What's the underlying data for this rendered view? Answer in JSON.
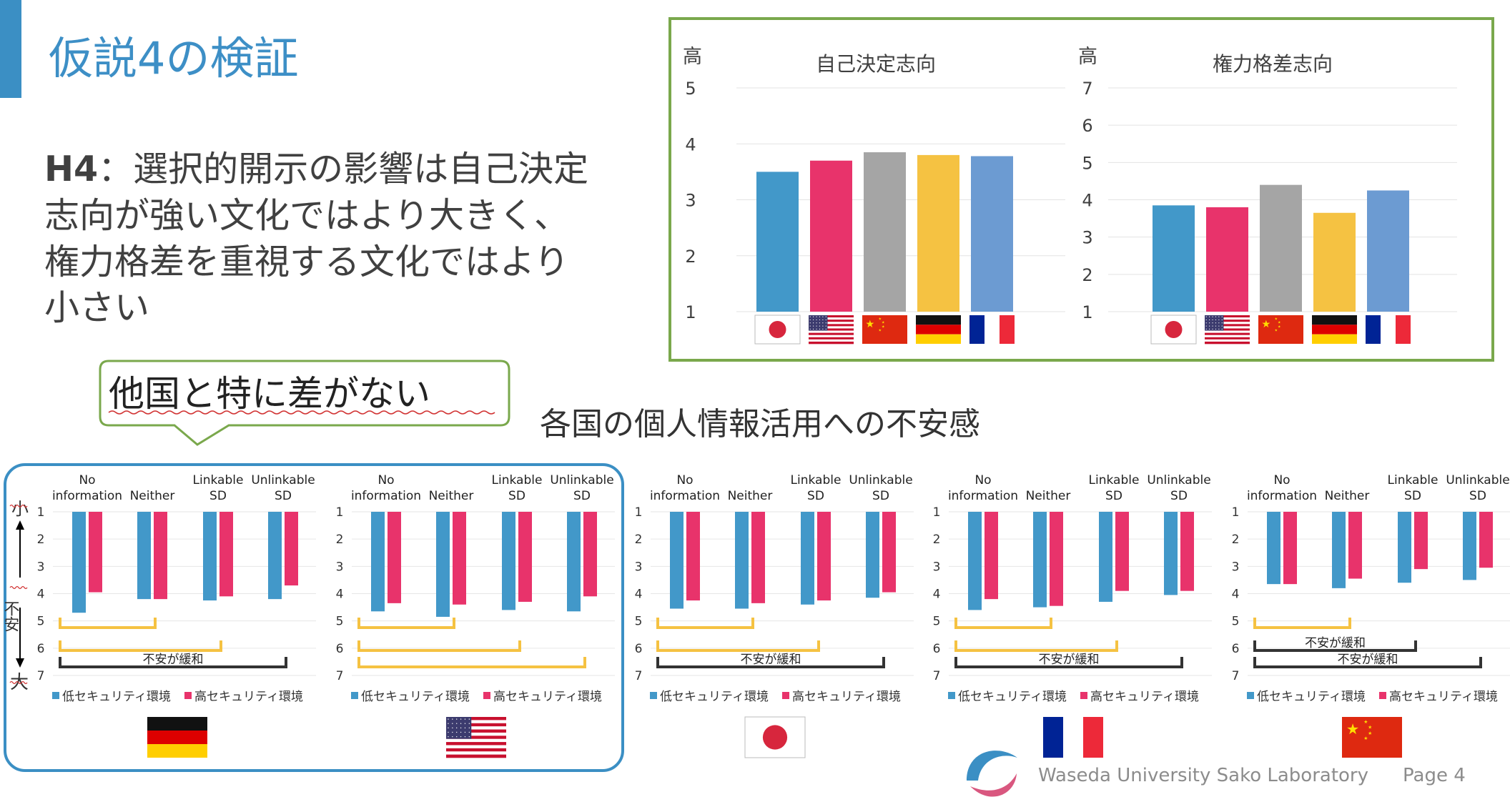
{
  "title": "仮説4の検証",
  "hypothesis": {
    "label": "H4",
    "lines": [
      "：選択的開示の影響は自己決定",
      "志向が強い文化ではより大きく、",
      "権力格差を重視する文化ではより",
      "小さい"
    ]
  },
  "callout": "他国と特に差がない",
  "section_title": "各国の個人情報活用への不安感",
  "footer": {
    "org": "Waseda University Sako Laboratory",
    "page": "Page 4"
  },
  "colors": {
    "accent": "#3b8fc4",
    "title": "#3d8fc6",
    "japan": "#4298c9",
    "usa": "#e8336b",
    "china": "#a5a5a5",
    "germany": "#f5c242",
    "france": "#6c9bd2",
    "low_security": "#4298c9",
    "high_security": "#e8336b",
    "bracket_yellow": "#f5c242",
    "bracket_dark": "#333333",
    "frame_green": "#7aa84c",
    "frame_blue": "#3b8fc4"
  },
  "culture_charts": [
    {
      "title": "自己決定志向",
      "axis_top_label": "高",
      "ylim": [
        1,
        5
      ],
      "ticks": [
        "1",
        "2",
        "3",
        "4",
        "5"
      ],
      "countries": [
        "japan",
        "usa",
        "china",
        "germany",
        "france"
      ],
      "flag_icons": [
        "japan-flag-icon",
        "usa-flag-icon",
        "china-flag-icon",
        "germany-flag-icon",
        "france-flag-icon"
      ],
      "values": [
        3.5,
        3.7,
        3.85,
        3.8,
        3.78
      ]
    },
    {
      "title": "権力格差志向",
      "axis_top_label": "高",
      "ylim": [
        1,
        7
      ],
      "ticks": [
        "1",
        "2",
        "3",
        "4",
        "5",
        "6",
        "7"
      ],
      "countries": [
        "japan",
        "usa",
        "china",
        "germany",
        "france"
      ],
      "flag_icons": [
        "japan-flag-icon",
        "usa-flag-icon",
        "china-flag-icon",
        "germany-flag-icon",
        "france-flag-icon"
      ],
      "values": [
        3.85,
        3.8,
        4.4,
        3.65,
        4.25
      ]
    }
  ],
  "anxiety_axis": {
    "top": "小",
    "middle": "不安",
    "bottom": "大"
  },
  "anxiety_charts": [
    {
      "country": "germany",
      "flag_icon": "germany-flag-icon",
      "categories": [
        "No information",
        "Neither",
        "Linkable SD",
        "Unlinkable SD"
      ],
      "ticks": [
        "1",
        "2",
        "3",
        "4",
        "5",
        "6",
        "7"
      ],
      "ylim": [
        1,
        7
      ],
      "series": [
        {
          "name": "低セキュリティ環境",
          "values": [
            4.7,
            4.2,
            4.25,
            4.2
          ]
        },
        {
          "name": "高セキュリティ環境",
          "values": [
            3.95,
            4.2,
            4.1,
            3.7
          ]
        }
      ],
      "brackets": [
        {
          "from": 0,
          "to": 1,
          "color": "yellow",
          "label": ""
        },
        {
          "from": 0,
          "to": 2,
          "color": "yellow",
          "label": ""
        },
        {
          "from": 0,
          "to": 3,
          "color": "dark",
          "label": "不安が緩和"
        }
      ]
    },
    {
      "country": "usa",
      "flag_icon": "usa-flag-icon",
      "categories": [
        "No information",
        "Neither",
        "Linkable SD",
        "Unlinkable SD"
      ],
      "ticks": [
        "1",
        "2",
        "3",
        "4",
        "5",
        "6",
        "7"
      ],
      "ylim": [
        1,
        7
      ],
      "series": [
        {
          "name": "低セキュリティ環境",
          "values": [
            4.65,
            4.85,
            4.6,
            4.65
          ]
        },
        {
          "name": "高セキュリティ環境",
          "values": [
            4.35,
            4.4,
            4.3,
            4.1
          ]
        }
      ],
      "brackets": [
        {
          "from": 0,
          "to": 1,
          "color": "yellow",
          "label": ""
        },
        {
          "from": 0,
          "to": 2,
          "color": "yellow",
          "label": ""
        },
        {
          "from": 0,
          "to": 3,
          "color": "yellow",
          "label": ""
        }
      ]
    },
    {
      "country": "japan",
      "flag_icon": "japan-flag-icon",
      "categories": [
        "No information",
        "Neither",
        "Linkable SD",
        "Unlinkable SD"
      ],
      "ticks": [
        "1",
        "2",
        "3",
        "4",
        "5",
        "6",
        "7"
      ],
      "ylim": [
        1,
        7
      ],
      "series": [
        {
          "name": "低セキュリティ環境",
          "values": [
            4.55,
            4.55,
            4.4,
            4.15
          ]
        },
        {
          "name": "高セキュリティ環境",
          "values": [
            4.25,
            4.35,
            4.25,
            3.95
          ]
        }
      ],
      "brackets": [
        {
          "from": 0,
          "to": 1,
          "color": "yellow",
          "label": ""
        },
        {
          "from": 0,
          "to": 2,
          "color": "yellow",
          "label": ""
        },
        {
          "from": 0,
          "to": 3,
          "color": "dark",
          "label": "不安が緩和"
        }
      ]
    },
    {
      "country": "france",
      "flag_icon": "france-flag-icon",
      "categories": [
        "No information",
        "Neither",
        "Linkable SD",
        "Unlinkable SD"
      ],
      "ticks": [
        "1",
        "2",
        "3",
        "4",
        "5",
        "6",
        "7"
      ],
      "ylim": [
        1,
        7
      ],
      "series": [
        {
          "name": "低セキュリティ環境",
          "values": [
            4.6,
            4.5,
            4.3,
            4.05
          ]
        },
        {
          "name": "高セキュリティ環境",
          "values": [
            4.2,
            4.45,
            3.9,
            3.9
          ]
        }
      ],
      "brackets": [
        {
          "from": 0,
          "to": 1,
          "color": "yellow",
          "label": ""
        },
        {
          "from": 0,
          "to": 2,
          "color": "yellow",
          "label": ""
        },
        {
          "from": 0,
          "to": 3,
          "color": "dark",
          "label": "不安が緩和"
        }
      ]
    },
    {
      "country": "china",
      "flag_icon": "china-flag-icon",
      "categories": [
        "No information",
        "Neither",
        "Linkable SD",
        "Unlinkable SD"
      ],
      "ticks": [
        "1",
        "2",
        "3",
        "4",
        "5",
        "6",
        "7"
      ],
      "ylim": [
        1,
        7
      ],
      "series": [
        {
          "name": "低セキュリティ環境",
          "values": [
            3.65,
            3.8,
            3.6,
            3.5
          ]
        },
        {
          "name": "高セキュリティ環境",
          "values": [
            3.65,
            3.45,
            3.1,
            3.05
          ]
        }
      ],
      "brackets": [
        {
          "from": 0,
          "to": 1,
          "color": "yellow",
          "label": ""
        },
        {
          "from": 0,
          "to": 2,
          "color": "dark",
          "label": "不安が緩和"
        },
        {
          "from": 0,
          "to": 3,
          "color": "dark",
          "label": "不安が緩和"
        }
      ]
    }
  ]
}
